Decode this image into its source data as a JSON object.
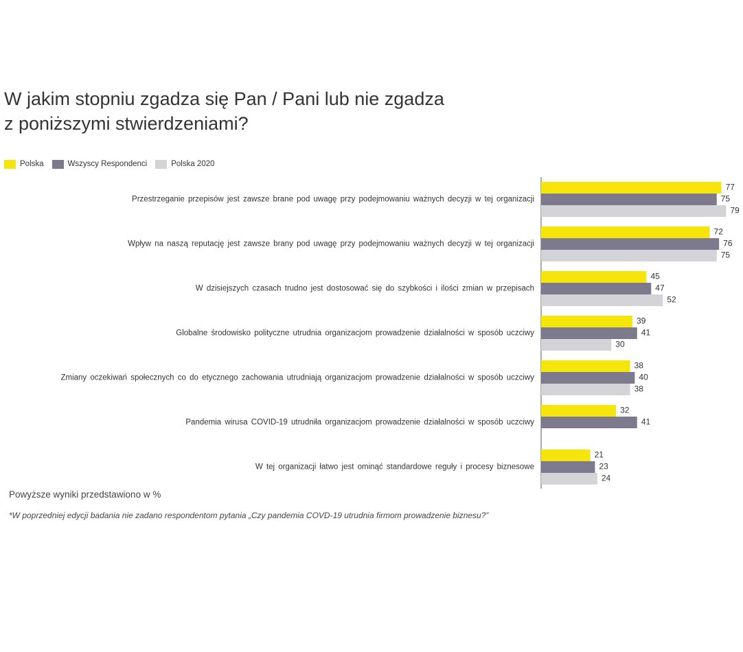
{
  "chart_data": {
    "type": "bar",
    "orientation": "horizontal",
    "title_lines": [
      "W jakim stopniu zgadza się Pan / Pani lub nie zgadza",
      "z poniższymi stwierdzeniami?"
    ],
    "xlim": [
      0,
      80
    ],
    "grid": false,
    "legend_placement": "top-left",
    "categories": [
      "Przestrzeganie  przepisów  jest zawsze brane pod uwagę przy podejmowaniu  ważnych decyzji  w tej organizacji",
      "Wpływ na naszą reputację jest zawsze brany pod uwagę przy podejmowaniu  ważnych decyzji  w tej organizacji",
      "W dzisiejszych  czasach  trudno jest dostosować  się do szybkości  i ilości  zmian w przepisach",
      "Globalne środowisko polityczne utrudnia organizacjom prowadzenie  działalności  w sposób uczciwy",
      "Zmiany oczekiwań społecznych  co do etycznego zachowania utrudniają organizacjom  prowadzenie  działalności  w sposób uczciwy",
      "Pandemia wirusa COVID-19 utrudniła organizacjom prowadzenie  działalności  w sposób uczciwy",
      "W tej organizacji  łatwo jest ominąć standardowe reguły i procesy biznesowe"
    ],
    "series": [
      {
        "name": "Polska",
        "color": "#F5E50A",
        "values": [
          77,
          72,
          45,
          39,
          38,
          32,
          21
        ]
      },
      {
        "name": "Wszyscy Respondenci",
        "color": "#7D7A8E",
        "values": [
          75,
          76,
          47,
          41,
          40,
          41,
          23
        ]
      },
      {
        "name": "Polska 2020",
        "color": "#D3D3D8",
        "values": [
          79,
          75,
          52,
          30,
          38,
          null,
          24
        ]
      }
    ]
  },
  "note": "Powyższe wyniki przedstawiono w %",
  "footnote": "*W poprzedniej edycji badania nie zadano respondentom pytania „Czy pandemia COVD-19 utrudnia firmom prowadzenie biznesu?”"
}
